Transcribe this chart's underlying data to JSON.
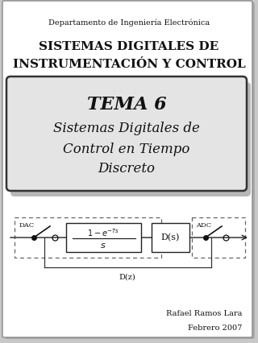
{
  "bg_color": "#c8c8c8",
  "page_bg": "#ffffff",
  "dept_text": "Departamento de Ingeniería Electrónica",
  "title_line1": "SISTEMAS DIGITALES DE",
  "title_line2": "INSTRUMENTACIÓN Y CONTROL",
  "tema_box_bg": "#e4e4e4",
  "tema_title": "TEMA 6",
  "tema_sub1": "Sistemas Digitales de",
  "tema_sub2": "Control en Tiempo",
  "tema_sub3": "Discreto",
  "author": "Rafael Ramos Lara",
  "date": "Febrero 2007",
  "dac_label": "DAC",
  "adc_label": "ADC",
  "dz_label": "D(z)",
  "ds_label": "D(s)"
}
